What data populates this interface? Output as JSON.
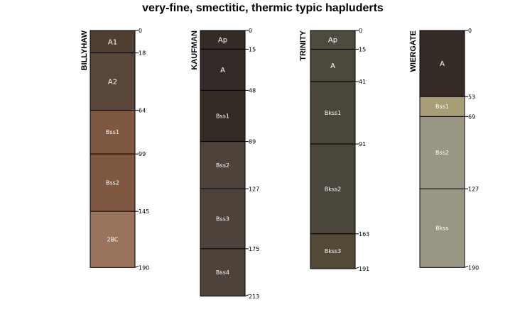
{
  "title": "very-fine, smectitic, thermic typic hapluderts",
  "chart_data": {
    "type": "soil-profile-sketch",
    "title": "very-fine, smectitic, thermic typic hapluderts",
    "depth_unit": "cm",
    "depth_range": [
      0,
      213
    ],
    "profiles": [
      {
        "name": "BILLYHAW",
        "horizons": [
          {
            "name": "A1",
            "top": 0,
            "bottom": 18,
            "color": "#4F3F33",
            "text": "#ffffff"
          },
          {
            "name": "A2",
            "top": 18,
            "bottom": 64,
            "color": "#58463A",
            "text": "#ffffff"
          },
          {
            "name": "Bss1",
            "top": 64,
            "bottom": 99,
            "color": "#7E5840",
            "text": "#ffffff"
          },
          {
            "name": "Bss2",
            "top": 99,
            "bottom": 145,
            "color": "#7E5840",
            "text": "#ffffff"
          },
          {
            "name": "2BC",
            "top": 145,
            "bottom": 190,
            "color": "#9A735C",
            "text": "#ffffff"
          }
        ]
      },
      {
        "name": "KAUFMAN",
        "horizons": [
          {
            "name": "Ap",
            "top": 0,
            "bottom": 15,
            "color": "#342C27",
            "text": "#ffffff"
          },
          {
            "name": "A",
            "top": 15,
            "bottom": 48,
            "color": "#322B27",
            "text": "#ffffff"
          },
          {
            "name": "Bss1",
            "top": 48,
            "bottom": 89,
            "color": "#352B26",
            "text": "#ffffff"
          },
          {
            "name": "Bss2",
            "top": 89,
            "bottom": 127,
            "color": "#4D433B",
            "text": "#ffffff"
          },
          {
            "name": "Bss3",
            "top": 127,
            "bottom": 175,
            "color": "#4D433B",
            "text": "#ffffff"
          },
          {
            "name": "Bss4",
            "top": 175,
            "bottom": 213,
            "color": "#4D433B",
            "text": "#ffffff"
          }
        ]
      },
      {
        "name": "TRINITY",
        "horizons": [
          {
            "name": "Ap",
            "top": 0,
            "bottom": 15,
            "color": "#4D4A40",
            "text": "#ffffff"
          },
          {
            "name": "A",
            "top": 15,
            "bottom": 41,
            "color": "#4B483E",
            "text": "#ffffff"
          },
          {
            "name": "Bkss1",
            "top": 41,
            "bottom": 91,
            "color": "#4B463C",
            "text": "#ffffff"
          },
          {
            "name": "Bkss2",
            "top": 91,
            "bottom": 163,
            "color": "#4B463C",
            "text": "#ffffff"
          },
          {
            "name": "Bkss3",
            "top": 163,
            "bottom": 191,
            "color": "#524A37",
            "text": "#ffffff"
          }
        ]
      },
      {
        "name": "WIERGATE",
        "horizons": [
          {
            "name": "A",
            "top": 0,
            "bottom": 53,
            "color": "#352C28",
            "text": "#ffffff"
          },
          {
            "name": "Bss1",
            "top": 53,
            "bottom": 69,
            "color": "#A79D77",
            "text": "#ffffff"
          },
          {
            "name": "Bss2",
            "top": 69,
            "bottom": 127,
            "color": "#9A9684",
            "text": "#ffffff"
          },
          {
            "name": "Bkss",
            "top": 127,
            "bottom": 190,
            "color": "#9A9684",
            "text": "#ffffff"
          }
        ]
      }
    ]
  }
}
